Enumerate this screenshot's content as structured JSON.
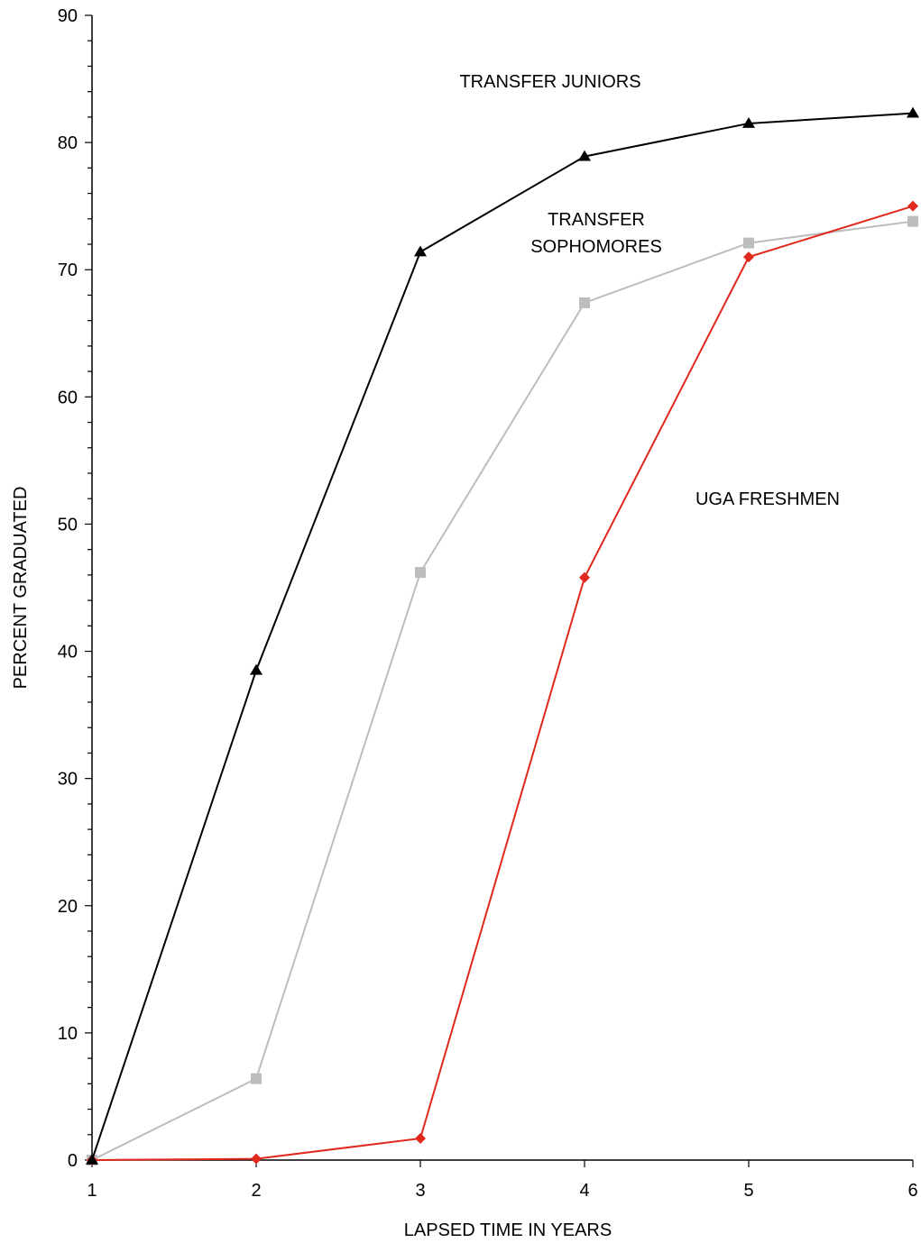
{
  "chart_data": {
    "type": "line",
    "xlabel": "LAPSED TIME IN YEARS",
    "ylabel": "PERCENT GRADUATED",
    "xlim": [
      1,
      6
    ],
    "ylim": [
      0,
      90
    ],
    "x_ticks": [
      "1",
      "2",
      "3",
      "4",
      "5",
      "6"
    ],
    "y_ticks": [
      "0",
      "10",
      "20",
      "30",
      "40",
      "50",
      "60",
      "70",
      "80",
      "90"
    ],
    "grid": false,
    "x": [
      1,
      2,
      3,
      4,
      5,
      6
    ],
    "series": [
      {
        "label_lines": [
          "TRANSFER JUNIORS"
        ],
        "color": "#000000",
        "marker": "triangle",
        "values": [
          0,
          38.5,
          71.4,
          78.9,
          81.5,
          82.3
        ]
      },
      {
        "label_lines": [
          "TRANSFER",
          "SOPHOMORES"
        ],
        "color": "#bdbdbd",
        "marker": "square",
        "values": [
          0,
          6.4,
          46.2,
          67.4,
          72.1,
          73.8
        ]
      },
      {
        "label_lines": [
          "UGA FRESHMEN"
        ],
        "color": "#e0281c",
        "marker": "diamond",
        "values": [
          0,
          0.1,
          1.7,
          45.8,
          71.0,
          75.0
        ]
      }
    ]
  }
}
